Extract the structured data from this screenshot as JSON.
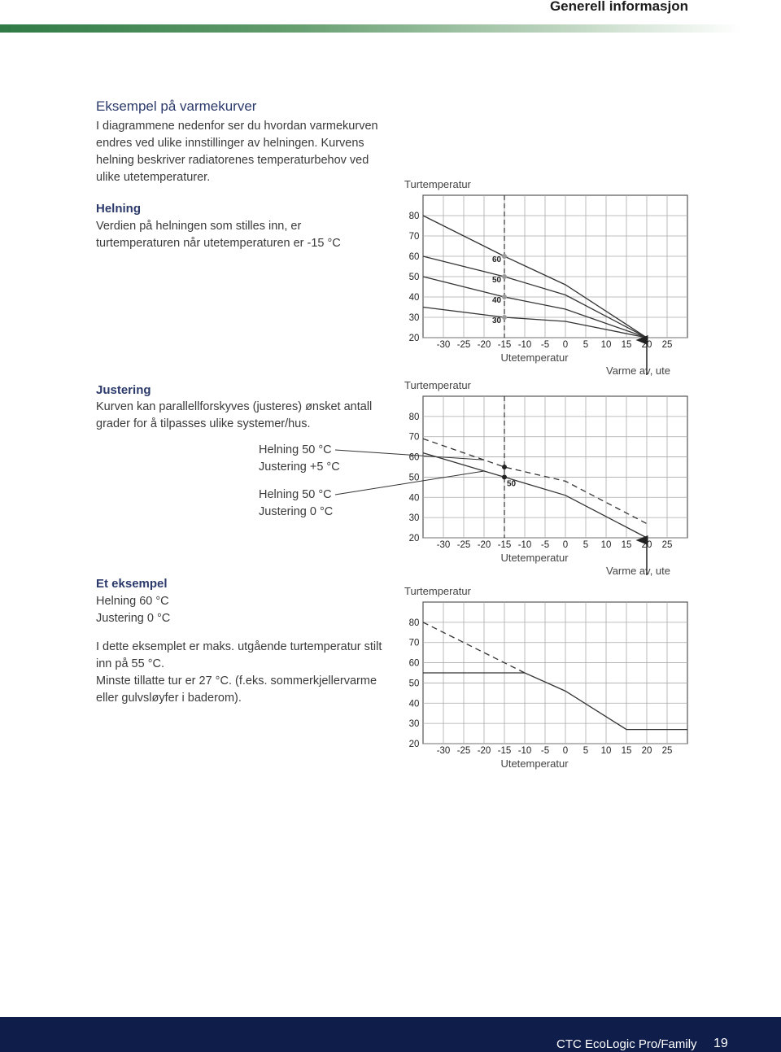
{
  "header": {
    "title": "Generell informasjon"
  },
  "sections": [
    {
      "title": "Eksempel på varmekurver",
      "text": "I diagrammene nedenfor ser du hvordan varmekurven endres ved ulike innstillinger av helningen. Kurvens helning beskriver radiatorenes temperaturbehov ved ulike utetemperaturer."
    },
    {
      "title": "Helning",
      "text": "Verdien på helningen som stilles inn, er turtemperaturen når utetemperaturen er -15 °C"
    },
    {
      "title": "Justering",
      "text": "Kurven kan parallellforskyves (justeres) ønsket antall grader for å tilpasses ulike systemer/hus."
    },
    {
      "title": "Et eksempel",
      "lines": [
        "Helning 60 °C",
        "Justering 0 °C"
      ],
      "text": "I dette eksemplet er maks. utgående turtemperatur stilt inn på 55 °C.",
      "text2": "Minste tillatte tur er 27 °C. (f.eks. sommerkjellervarme eller gulvsløyfer i baderom)."
    }
  ],
  "footer": {
    "product": "CTC EcoLogic Pro/Family",
    "page": "19"
  },
  "chart_data": [
    {
      "type": "line",
      "y_label": "Turtemperatur",
      "x_label": "Utetemperatur",
      "annotation": {
        "text": "Varme av, ute",
        "x": 20
      },
      "reference_x": -15,
      "marker_index": 1,
      "xlim": [
        -35,
        30
      ],
      "ylim": [
        20,
        90
      ],
      "xticks": [
        -30,
        -25,
        -20,
        -15,
        -10,
        -5,
        0,
        5,
        10,
        15,
        20,
        25
      ],
      "yticks": [
        20,
        30,
        40,
        50,
        60,
        70,
        80
      ],
      "grid": true,
      "x": [
        -35,
        -15,
        0,
        20
      ],
      "series": [
        {
          "name": "60",
          "color": "#333333",
          "values": [
            80,
            60,
            46,
            20
          ]
        },
        {
          "name": "50",
          "color": "#333333",
          "values": [
            60,
            50,
            41,
            20
          ]
        },
        {
          "name": "40",
          "color": "#333333",
          "values": [
            50,
            40,
            34,
            20
          ]
        },
        {
          "name": "30",
          "color": "#333333",
          "values": [
            35,
            30,
            28,
            20
          ]
        }
      ]
    },
    {
      "type": "line",
      "y_label": "Turtemperatur",
      "x_label": "Utetemperatur",
      "annotation": {
        "text": "Varme av, ute",
        "x": 20
      },
      "reference_x": -15,
      "marker_index": 1,
      "xlim": [
        -35,
        30
      ],
      "ylim": [
        20,
        90
      ],
      "xticks": [
        -30,
        -25,
        -20,
        -15,
        -10,
        -5,
        0,
        5,
        10,
        15,
        20,
        25
      ],
      "yticks": [
        20,
        30,
        40,
        50,
        60,
        70,
        80
      ],
      "grid": true,
      "x": [
        -35,
        -15,
        0,
        20
      ],
      "series": [
        {
          "label": [
            "Helning 50 °C",
            "Justering +5 °C"
          ],
          "dashed": true,
          "color": "#333333",
          "values": [
            69,
            55,
            48,
            27
          ]
        },
        {
          "name": "50",
          "label": [
            "Helning 50 °C",
            "Justering 0 °C"
          ],
          "color": "#333333",
          "values": [
            62,
            50,
            41,
            20
          ]
        }
      ]
    },
    {
      "type": "line",
      "y_label": "Turtemperatur",
      "x_label": "Utetemperatur",
      "xlim": [
        -35,
        30
      ],
      "ylim": [
        20,
        90
      ],
      "xticks": [
        -30,
        -25,
        -20,
        -15,
        -10,
        -5,
        0,
        5,
        10,
        15,
        20,
        25
      ],
      "yticks": [
        20,
        30,
        40,
        50,
        60,
        70,
        80
      ],
      "grid": true,
      "series": [
        {
          "dashed": true,
          "color": "#333333",
          "x": [
            -35,
            -10
          ],
          "values": [
            80,
            55
          ]
        },
        {
          "color": "#333333",
          "x": [
            -35,
            -10,
            0,
            15,
            30
          ],
          "values": [
            55,
            55,
            46,
            27,
            27
          ]
        }
      ]
    }
  ]
}
